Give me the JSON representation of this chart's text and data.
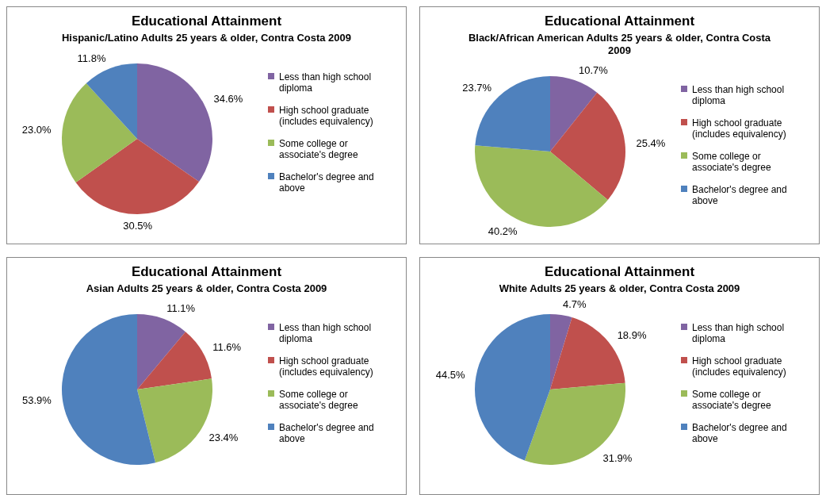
{
  "chart_data": [
    {
      "type": "pie",
      "title": "Educational Attainment",
      "subtitle": "Hispanic/Latino Adults 25 years & older, Contra Costa 2009",
      "categories": [
        "Less than high school diploma",
        "High school graduate (includes equivalency)",
        "Some college or associate's degree",
        "Bachelor's degree and above"
      ],
      "values": [
        34.6,
        30.5,
        23.0,
        11.8
      ],
      "value_labels": [
        "34.6%",
        "30.5%",
        "23.0%",
        "11.8%"
      ],
      "colors": [
        "#8064a2",
        "#c0504d",
        "#9bbb59",
        "#4f81bd"
      ],
      "legend": "right"
    },
    {
      "type": "pie",
      "title": "Educational Attainment",
      "subtitle": "Black/African American Adults 25 years & older, Contra Costa 2009",
      "categories": [
        "Less than high school diploma",
        "High school graduate (includes equivalency)",
        "Some college or associate's degree",
        "Bachelor's degree and above"
      ],
      "values": [
        10.7,
        25.4,
        40.2,
        23.7
      ],
      "value_labels": [
        "10.7%",
        "25.4%",
        "40.2%",
        "23.7%"
      ],
      "colors": [
        "#8064a2",
        "#c0504d",
        "#9bbb59",
        "#4f81bd"
      ],
      "legend": "right"
    },
    {
      "type": "pie",
      "title": "Educational Attainment",
      "subtitle": "Asian Adults 25 years & older, Contra Costa 2009",
      "categories": [
        "Less than high school diploma",
        "High school graduate (includes equivalency)",
        "Some college or associate's degree",
        "Bachelor's degree and above"
      ],
      "values": [
        11.1,
        11.6,
        23.4,
        53.9
      ],
      "value_labels": [
        "11.1%",
        "11.6%",
        "23.4%",
        "53.9%"
      ],
      "colors": [
        "#8064a2",
        "#c0504d",
        "#9bbb59",
        "#4f81bd"
      ],
      "legend": "right"
    },
    {
      "type": "pie",
      "title": "Educational Attainment",
      "subtitle": "White Adults 25 years & older, Contra Costa 2009",
      "categories": [
        "Less than high school diploma",
        "High school graduate (includes equivalency)",
        "Some college or associate's degree",
        "Bachelor's degree and above"
      ],
      "values": [
        4.7,
        18.9,
        31.9,
        44.5
      ],
      "value_labels": [
        "4.7%",
        "18.9%",
        "31.9%",
        "44.5%"
      ],
      "colors": [
        "#8064a2",
        "#c0504d",
        "#9bbb59",
        "#4f81bd"
      ],
      "legend": "right"
    }
  ]
}
